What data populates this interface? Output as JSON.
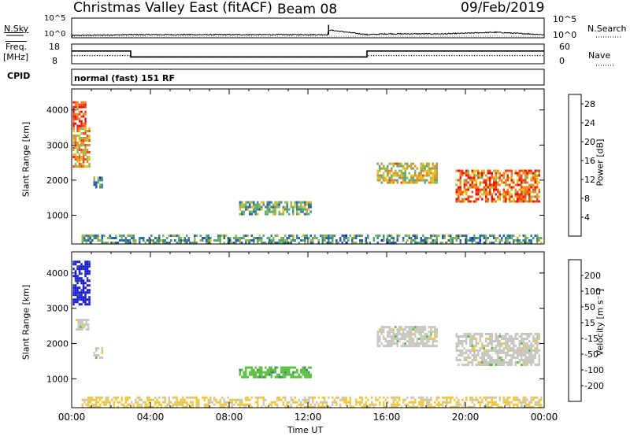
{
  "header": {
    "station": "Christmas Valley East (fitACF)",
    "beam": "Beam 08",
    "date": "09/Feb/2019"
  },
  "top_panels": {
    "nsky_label": "N.Sky",
    "nsearch_label": "N.Search",
    "nsky_ticks": [
      "10^5",
      "10^0"
    ],
    "nsearch_ticks": [
      "10^5",
      "10^0"
    ],
    "freq_label": "Freq.",
    "freq_unit": "[MHz]",
    "freq_ticks": [
      "18",
      "8"
    ],
    "nave_ticks": [
      "60",
      "0"
    ],
    "nave_label": "Nave",
    "cpid_label": "CPID",
    "mode_text": "normal (fast) 151 RF"
  },
  "axes": {
    "ylabel": "Slant Range [km]",
    "xlabel": "Time UT",
    "xticks": [
      "00:00",
      "04:00",
      "08:00",
      "12:00",
      "16:00",
      "20:00",
      "00:00"
    ],
    "yticks": [
      "1000",
      "2000",
      "3000",
      "4000"
    ]
  },
  "chart_data": [
    {
      "type": "line",
      "panel": "N.Sky / N.Search",
      "x": [
        0,
        0.05,
        3,
        6,
        9,
        12,
        13,
        13.05,
        15,
        16,
        19,
        21.5,
        24
      ],
      "nsky_log10": [
        0.1,
        0.6,
        0.8,
        0.8,
        0.8,
        0.8,
        0.8,
        2.0,
        0.8,
        1.0,
        1.0,
        1.4,
        0.8
      ],
      "ylim": [
        0,
        5
      ]
    },
    {
      "type": "line",
      "panel": "Freq / Nave",
      "x": [
        0,
        3,
        3,
        15,
        15,
        24
      ],
      "freq_mhz": [
        14.5,
        14.5,
        11.5,
        11.5,
        14.5,
        14.5
      ],
      "nave": [
        25,
        25,
        20,
        20,
        25,
        25
      ],
      "ylim_freq": [
        8,
        18
      ],
      "ylim_nave": [
        0,
        60
      ]
    },
    {
      "type": "heatmap",
      "panel": "Power",
      "xlabel": "Time UT",
      "ylabel": "Slant Range [km]",
      "xlim": [
        0,
        24
      ],
      "ylim": [
        180,
        4600
      ],
      "colorbar": {
        "label": "Power [dB]",
        "ticks": [
          4,
          8,
          12,
          16,
          20,
          24,
          28
        ],
        "range": [
          0,
          30
        ],
        "colors": [
          "#1c1cf0",
          "#2e5fa8",
          "#3f8a86",
          "#5fa878",
          "#9ab850",
          "#e8c020",
          "#f08820",
          "#f04818",
          "#e81010"
        ]
      },
      "regions": [
        {
          "t": [
            0.05,
            0.7
          ],
          "r": [
            3500,
            4250
          ],
          "value": 27
        },
        {
          "t": [
            0.05,
            0.9
          ],
          "r": [
            2400,
            3500
          ],
          "value": 20
        },
        {
          "t": [
            1.1,
            1.6
          ],
          "r": [
            1800,
            2100
          ],
          "value": 10
        },
        {
          "t": [
            8.5,
            12.2
          ],
          "r": [
            1000,
            1400
          ],
          "value": 12
        },
        {
          "t": [
            15.5,
            18.6
          ],
          "r": [
            1900,
            2500
          ],
          "value": 17
        },
        {
          "t": [
            19.5,
            23.8
          ],
          "r": [
            1400,
            2300
          ],
          "value": 22
        },
        {
          "t": [
            0.5,
            23.9
          ],
          "r": [
            200,
            450
          ],
          "value": 10
        }
      ]
    },
    {
      "type": "heatmap",
      "panel": "Velocity",
      "xlabel": "Time UT",
      "ylabel": "Slant Range [km]",
      "xlim": [
        0,
        24
      ],
      "ylim": [
        180,
        4600
      ],
      "colorbar": {
        "label": "Velocity [m s⁻¹]",
        "ticks": [
          "200",
          "100",
          "50",
          "15",
          "-15",
          "-50",
          "-100",
          "-200"
        ],
        "range": [
          -250,
          250
        ],
        "colors": [
          "#1818d8",
          "#2848a8",
          "#3a8a78",
          "#5cc040",
          "#c8c8c0",
          "#f0c840",
          "#f09020",
          "#f05018",
          "#e81010"
        ]
      },
      "regions": [
        {
          "t": [
            0.05,
            0.9
          ],
          "r": [
            3100,
            4350
          ],
          "value": 220
        },
        {
          "t": [
            0.2,
            0.9
          ],
          "r": [
            2400,
            2700
          ],
          "value": 0
        },
        {
          "t": [
            1.1,
            1.6
          ],
          "r": [
            1600,
            1900
          ],
          "value": 0
        },
        {
          "t": [
            8.5,
            12.2
          ],
          "r": [
            1050,
            1350
          ],
          "value": 60
        },
        {
          "t": [
            15.5,
            18.6
          ],
          "r": [
            1900,
            2500
          ],
          "value": 0
        },
        {
          "t": [
            19.5,
            23.8
          ],
          "r": [
            1400,
            2300
          ],
          "value": 0
        },
        {
          "t": [
            0.5,
            23.9
          ],
          "r": [
            200,
            500
          ],
          "value": -40
        }
      ]
    }
  ]
}
